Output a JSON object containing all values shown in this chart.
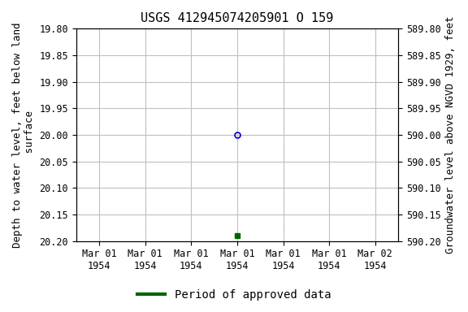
{
  "title": "USGS 412945074205901 O 159",
  "ylabel_left": "Depth to water level, feet below land\n surface",
  "ylabel_right": "Groundwater level above NGVD 1929, feet",
  "ylim_left": [
    19.8,
    20.2
  ],
  "ylim_right": [
    590.2,
    589.8
  ],
  "y_ticks_left": [
    19.8,
    19.85,
    19.9,
    19.95,
    20.0,
    20.05,
    20.1,
    20.15,
    20.2
  ],
  "y_ticks_right": [
    590.2,
    590.15,
    590.1,
    590.05,
    590.0,
    589.95,
    589.9,
    589.85,
    589.8
  ],
  "x_tick_labels": [
    "Mar 01\n1954",
    "Mar 01\n1954",
    "Mar 01\n1954",
    "Mar 01\n1954",
    "Mar 01\n1954",
    "Mar 01\n1954",
    "Mar 02\n1954"
  ],
  "x_ticks": [
    0,
    1,
    2,
    3,
    4,
    5,
    6
  ],
  "xlim": [
    -0.5,
    6.5
  ],
  "point_open_x": 3,
  "point_open_y": 20.0,
  "point_open_color": "#0000cc",
  "point_filled_x": 3,
  "point_filled_y": 20.19,
  "point_filled_color": "#006400",
  "legend_label": "Period of approved data",
  "legend_color": "#006400",
  "background_color": "#ffffff",
  "grid_color": "#c0c0c0",
  "title_fontsize": 11,
  "axis_fontsize": 9,
  "tick_fontsize": 8.5
}
